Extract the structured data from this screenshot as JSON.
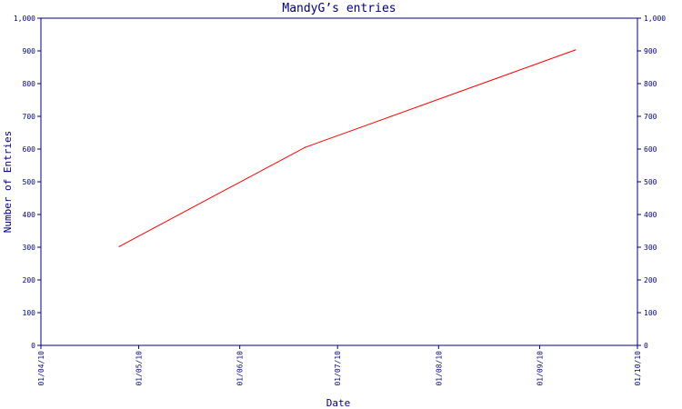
{
  "chart_data": {
    "type": "line",
    "title": "MandyG’s entries",
    "xlabel": "Date",
    "ylabel": "Number of Entries",
    "x_ticks": [
      "01/04/10",
      "01/05/10",
      "01/06/10",
      "01/07/10",
      "01/08/10",
      "01/09/10",
      "01/10/10"
    ],
    "y_ticks": [
      "0",
      "100",
      "200",
      "300",
      "400",
      "500",
      "600",
      "700",
      "800",
      "900",
      "1,000"
    ],
    "ylim": [
      0,
      1000
    ],
    "xlim": [
      "2010-04-01",
      "2010-10-01"
    ],
    "grid": false,
    "right_axis": true,
    "series": [
      {
        "points": [
          {
            "x": "2010-04-25",
            "y": 302
          },
          {
            "x": "2010-06-21",
            "y": 605
          },
          {
            "x": "2010-09-12",
            "y": 903
          }
        ]
      }
    ],
    "colors": {
      "axis": "#000080",
      "line": "#ff0000",
      "text": "#000080"
    }
  }
}
